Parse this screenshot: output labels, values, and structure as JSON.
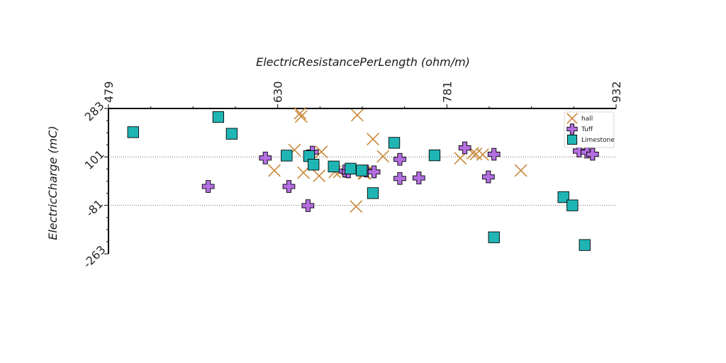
{
  "chart_data": {
    "type": "scatter",
    "xlabel": "ElectricResistancePerLength (ohm/m)",
    "ylabel": "ElectricCharge (mC)",
    "xlim": [
      479,
      932
    ],
    "ylim": [
      -263,
      283
    ],
    "x_ticks": [
      "479",
      "630",
      "781",
      "932"
    ],
    "y_ticks": [
      "283",
      "101",
      "-81",
      "-263"
    ],
    "grid": "horizontal dotted lines at y ticks",
    "legend_position": "top-right",
    "series": [
      {
        "name": "hall",
        "marker": "x",
        "color": "#c8883a",
        "points": [
          [
            650,
            265
          ],
          [
            651,
            253
          ],
          [
            645,
            127
          ],
          [
            669,
            120
          ],
          [
            627,
            50
          ],
          [
            653,
            42
          ],
          [
            667,
            30
          ],
          [
            681,
            45
          ],
          [
            701,
            258
          ],
          [
            715,
            168
          ],
          [
            724,
            103
          ],
          [
            707,
            40
          ],
          [
            793,
            96
          ],
          [
            813,
            110
          ],
          [
            807,
            112
          ],
          [
            804,
            115
          ],
          [
            847,
            50
          ],
          [
            700,
            -85
          ],
          [
            685,
            45
          ],
          [
            708,
            40
          ],
          [
            707,
            41
          ]
        ]
      },
      {
        "name": "Tuff",
        "marker": "plus",
        "color": "#b36ee0",
        "points": [
          [
            568,
            -10
          ],
          [
            619,
            97
          ],
          [
            640,
            -10
          ],
          [
            661,
            119
          ],
          [
            657,
            -82
          ],
          [
            690,
            48
          ],
          [
            693,
            45
          ],
          [
            709,
            48
          ],
          [
            716,
            45
          ],
          [
            739,
            92
          ],
          [
            739,
            20
          ],
          [
            756,
            22
          ],
          [
            797,
            135
          ],
          [
            818,
            26
          ],
          [
            823,
            111
          ],
          [
            899,
            123
          ],
          [
            906,
            119
          ],
          [
            911,
            111
          ]
        ]
      },
      {
        "name": "Limestone",
        "marker": "square",
        "color": "#20b5b5",
        "points": [
          [
            501,
            194
          ],
          [
            577,
            251
          ],
          [
            589,
            188
          ],
          [
            638,
            106
          ],
          [
            658,
            104
          ],
          [
            662,
            72
          ],
          [
            680,
            65
          ],
          [
            695,
            57
          ],
          [
            705,
            50
          ],
          [
            715,
            -35
          ],
          [
            734,
            154
          ],
          [
            770,
            107
          ],
          [
            823,
            -201
          ],
          [
            885,
            -50
          ],
          [
            904,
            -230
          ],
          [
            893,
            -81
          ]
        ]
      }
    ]
  }
}
